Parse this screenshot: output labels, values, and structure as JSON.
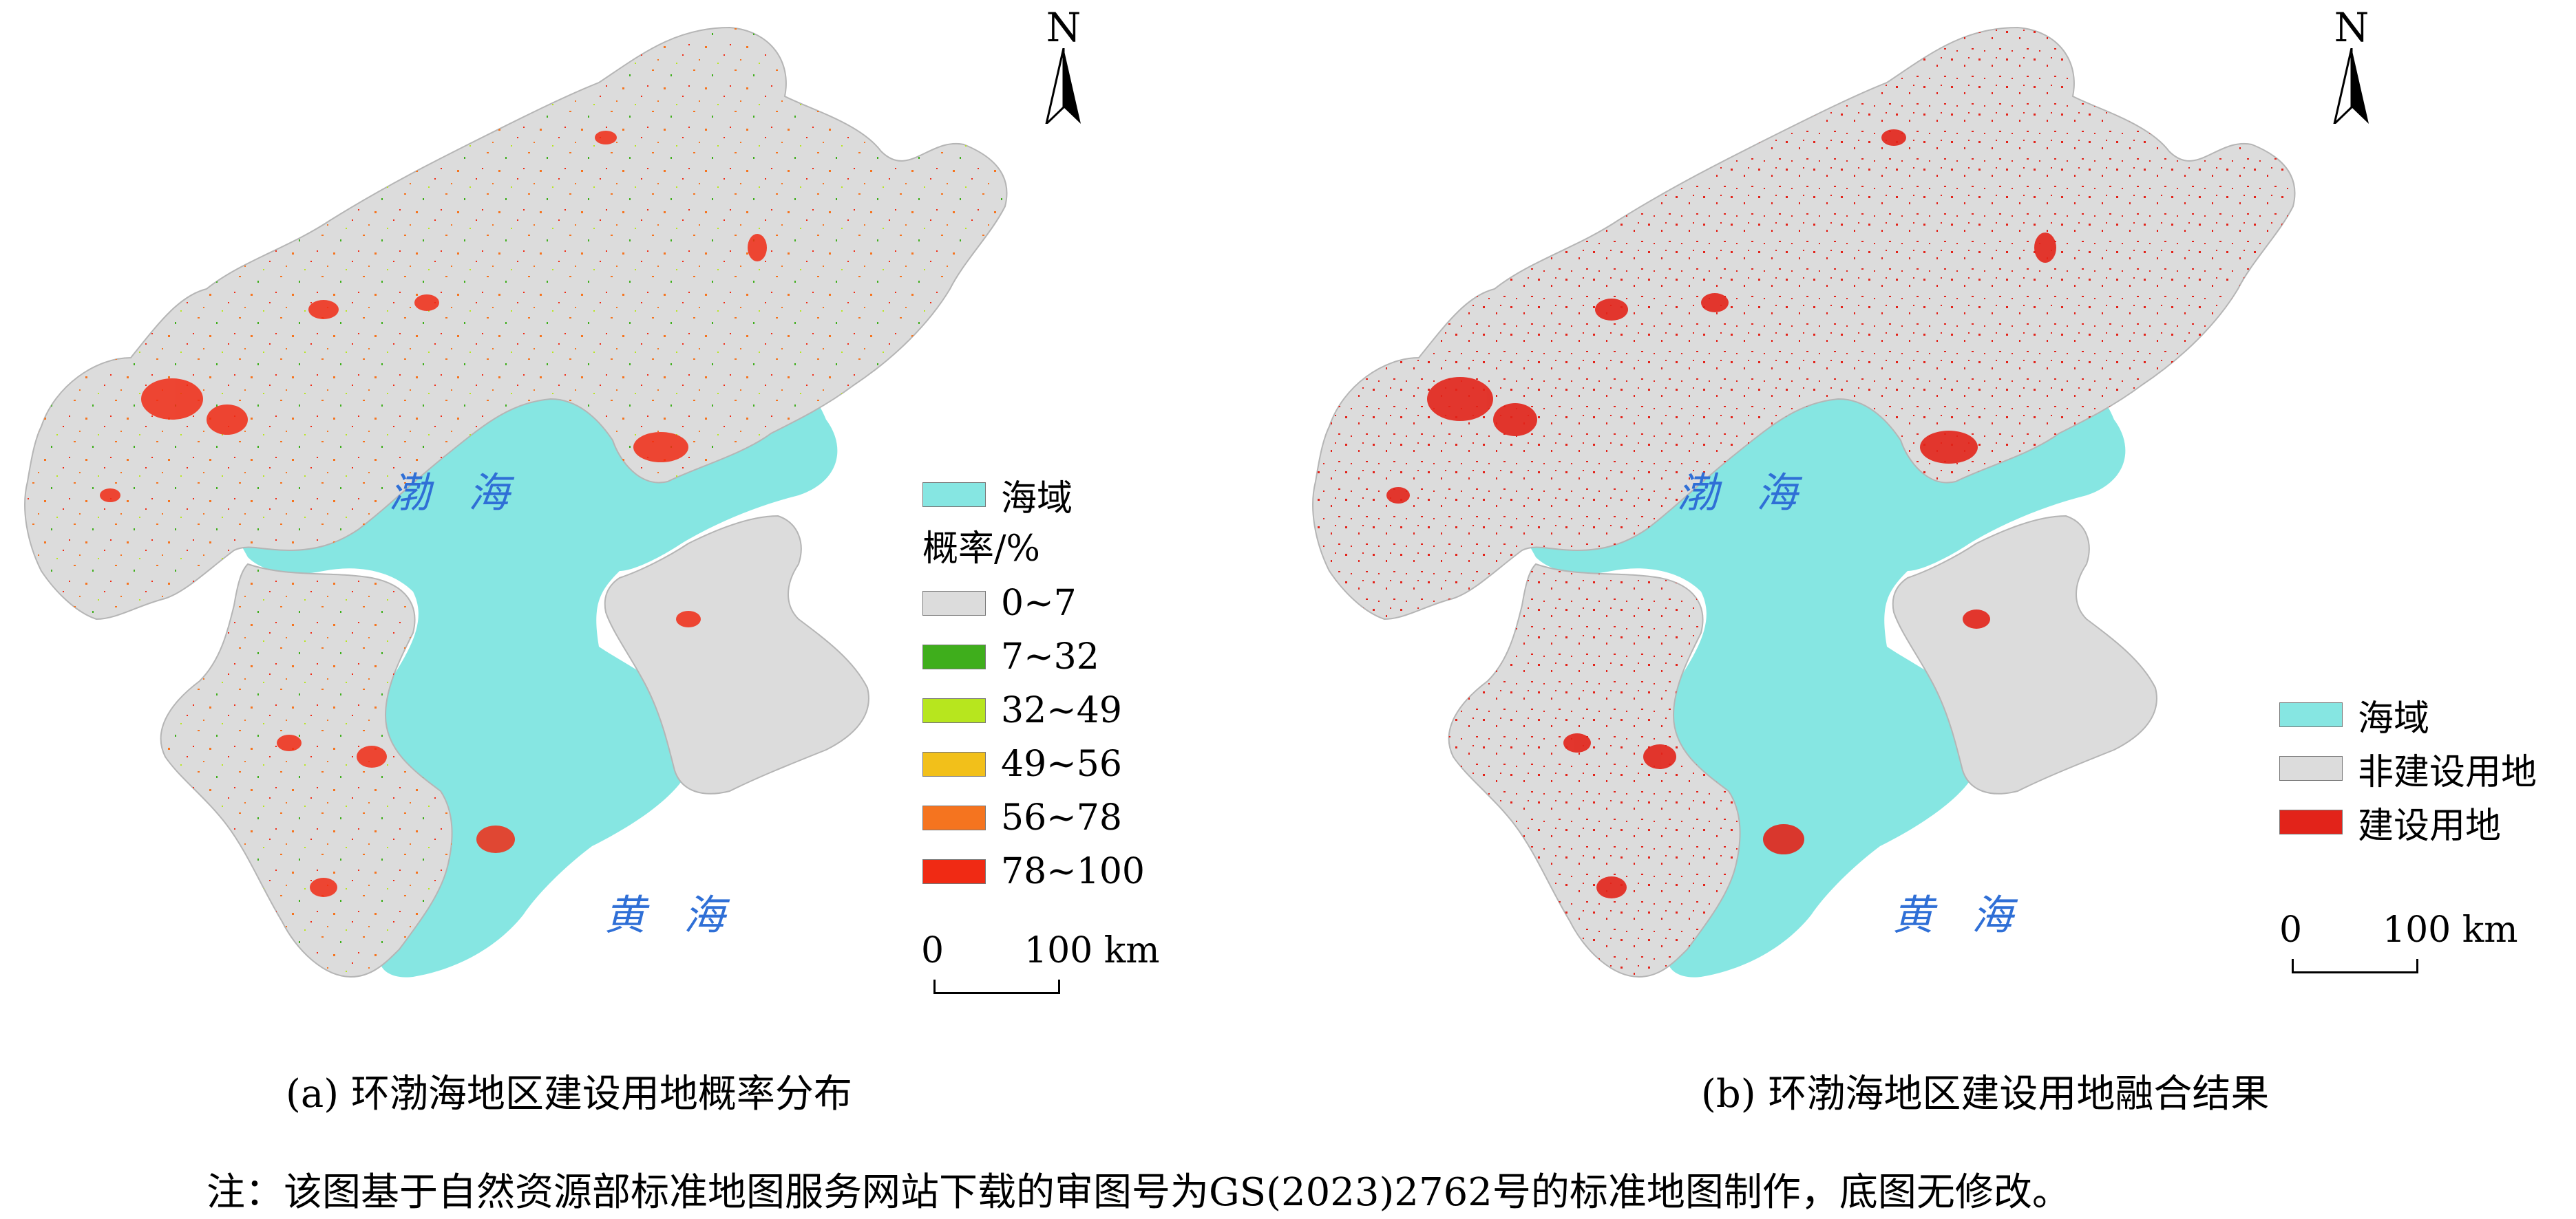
{
  "panels": [
    {
      "caption": "(a) 环渤海地区建设用地概率分布",
      "north": "N",
      "sea_labels": {
        "bohai": "渤 海",
        "huanghai": "黄 海"
      },
      "legend": {
        "sea": {
          "label": "海域",
          "color": "#86e6e2"
        },
        "title": "概率/%",
        "classes": [
          {
            "label": "0~7",
            "color": "#dcdcdc"
          },
          {
            "label": "7~32",
            "color": "#3fae1c"
          },
          {
            "label": "32~49",
            "color": "#b7e61e"
          },
          {
            "label": "49~56",
            "color": "#f2c01a"
          },
          {
            "label": "56~78",
            "color": "#f5741f"
          },
          {
            "label": "78~100",
            "color": "#f02a14"
          }
        ]
      },
      "scale": {
        "start": "0",
        "end": "100 km"
      }
    },
    {
      "caption": "(b) 环渤海地区建设用地融合结果",
      "north": "N",
      "sea_labels": {
        "bohai": "渤 海",
        "huanghai": "黄 海"
      },
      "legend": {
        "classes": [
          {
            "label": "海域",
            "color": "#86e6e2"
          },
          {
            "label": "非建设用地",
            "color": "#dcdcdc"
          },
          {
            "label": "建设用地",
            "color": "#e2231a"
          }
        ]
      },
      "scale": {
        "start": "0",
        "end": "100 km"
      }
    }
  ],
  "note": "注：该图基于自然资源部标准地图服务网站下载的审图号为GS(2023)2762号的标准地图制作，底图无修改。"
}
